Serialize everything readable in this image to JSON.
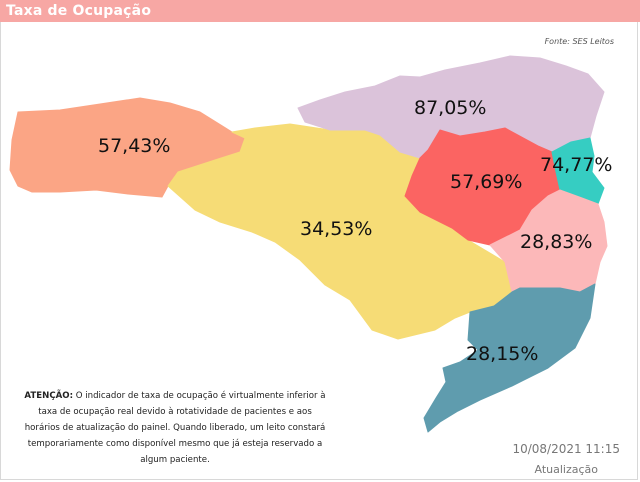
{
  "header": {
    "title": "Taxa de Ocupação"
  },
  "source": "Fonte: SES Leitos",
  "regions": [
    {
      "value": "57,43%",
      "color": "#fba585"
    },
    {
      "value": "34,53%",
      "color": "#f6dc76"
    },
    {
      "value": "87,05%",
      "color": "#dbc3da"
    },
    {
      "value": "57,69%",
      "color": "#fb6462"
    },
    {
      "value": "74,77%",
      "color": "#36cdc2"
    },
    {
      "value": "28,83%",
      "color": "#fcb8b9"
    },
    {
      "value": "28,15%",
      "color": "#5f9cae"
    }
  ],
  "notice": {
    "heading": "ATENÇÃO:",
    "body": " O indicador de taxa de ocupação é virtualmente inferior à taxa de ocupação real devido à rotatividade de pacientes e aos horários de atualização do painel.  Quando liberado, um leito constará temporariamente como disponível mesmo que já esteja reservado a algum paciente."
  },
  "update": {
    "datetime": "10/08/2021 11:15",
    "label": "Atualização"
  }
}
